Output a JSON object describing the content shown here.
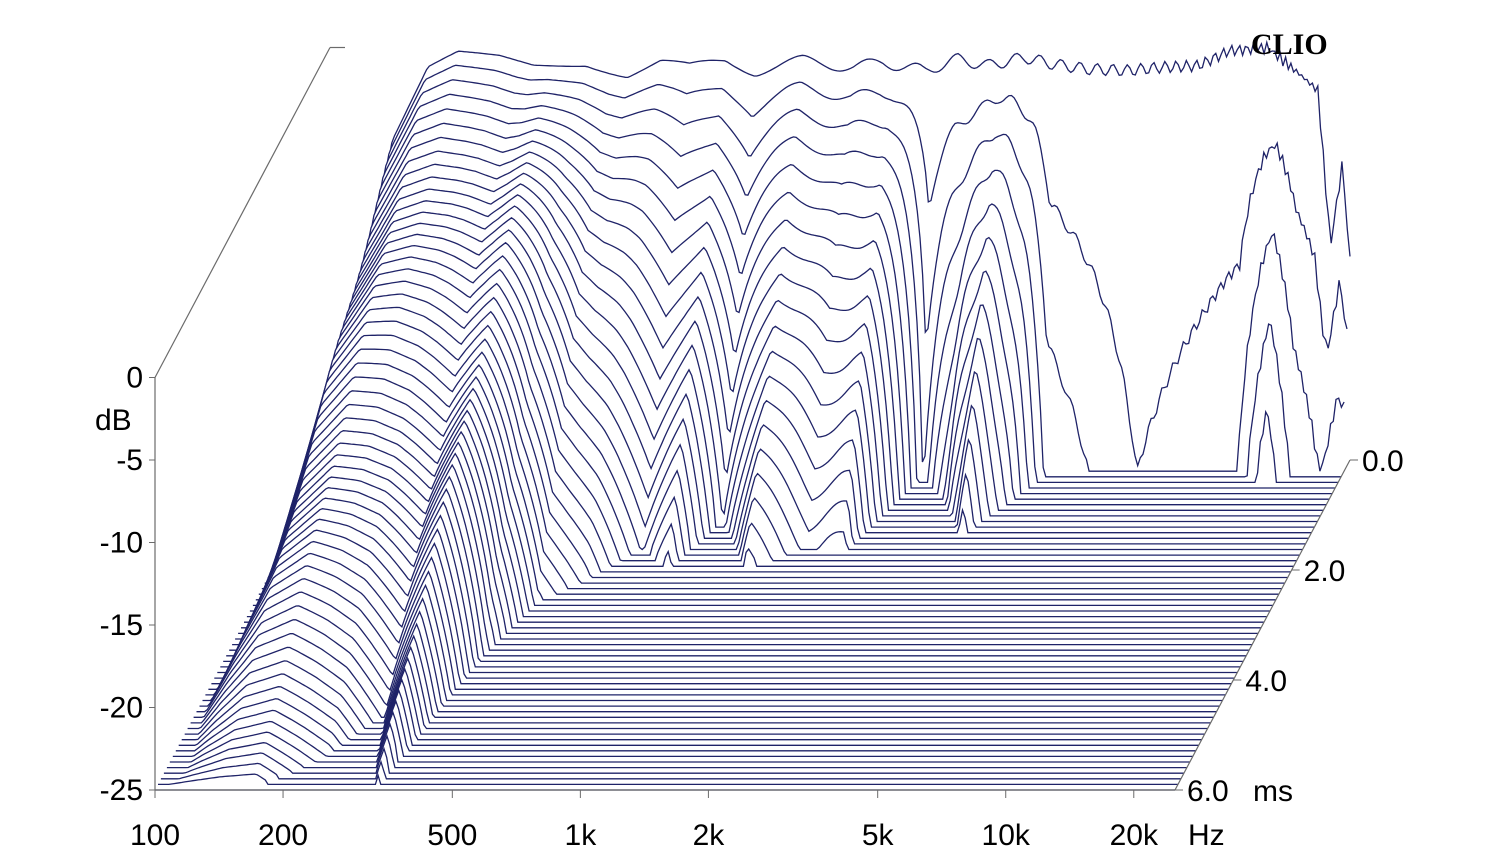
{
  "brand": "CLIO",
  "chart_data": {
    "type": "waterfall",
    "title": "",
    "x_axis": {
      "unit": "Hz",
      "scale": "log",
      "range": [
        100,
        25000
      ],
      "tick_labels": [
        "100",
        "200",
        "500",
        "1k",
        "2k",
        "5k",
        "10k",
        "20k"
      ],
      "tick_values": [
        100,
        200,
        500,
        1000,
        2000,
        5000,
        10000,
        20000
      ]
    },
    "z_axis": {
      "unit": "dB",
      "range": [
        -25,
        0
      ],
      "tick_labels": [
        "0",
        "-5",
        "-10",
        "-15",
        "-20",
        "-25"
      ],
      "tick_values": [
        0,
        -5,
        -10,
        -15,
        -20,
        -25
      ]
    },
    "time_axis": {
      "unit": "ms",
      "range": [
        0,
        6.0
      ],
      "tick_labels": [
        "0.0",
        "2.0",
        "4.0",
        "6.0"
      ],
      "tick_values": [
        0,
        2,
        4,
        6
      ]
    },
    "slice_count": 60,
    "decay_profile": [
      {
        "f": 100,
        "t_end": 6.0
      },
      {
        "f": 140,
        "t_end": 6.0
      },
      {
        "f": 170,
        "t_end": 6.0
      },
      {
        "f": 230,
        "t_end": 5.4
      },
      {
        "f": 280,
        "t_end": 4.7
      },
      {
        "f": 330,
        "t_end": 6.0
      },
      {
        "f": 400,
        "t_end": 3.6
      },
      {
        "f": 460,
        "t_end": 2.6
      },
      {
        "f": 560,
        "t_end": 2.2
      },
      {
        "f": 700,
        "t_end": 1.6
      },
      {
        "f": 850,
        "t_end": 2.0
      },
      {
        "f": 1000,
        "t_end": 1.1
      },
      {
        "f": 1300,
        "t_end": 2.0
      },
      {
        "f": 1700,
        "t_end": 1.6
      },
      {
        "f": 2100,
        "t_end": 1.7
      },
      {
        "f": 2600,
        "t_end": 0.3
      },
      {
        "f": 3200,
        "t_end": 0.8
      },
      {
        "f": 3800,
        "t_end": 1.4
      },
      {
        "f": 5000,
        "t_end": 0.3
      },
      {
        "f": 8000,
        "t_end": 0.1
      },
      {
        "f": 14000,
        "t_end": 0.2
      },
      {
        "f": 17000,
        "t_end": 0.5
      },
      {
        "f": 19000,
        "t_end": 0.3
      },
      {
        "f": 22000,
        "t_end": 0.2
      },
      {
        "f": 25000,
        "t_end": 0.3
      }
    ],
    "initial_response_db": [
      {
        "f": 100,
        "db": -30
      },
      {
        "f": 120,
        "db": -16
      },
      {
        "f": 140,
        "db": -6
      },
      {
        "f": 170,
        "db": -1.5
      },
      {
        "f": 200,
        "db": -0.5
      },
      {
        "f": 250,
        "db": -0.6
      },
      {
        "f": 300,
        "db": -1.0
      },
      {
        "f": 400,
        "db": -0.8
      },
      {
        "f": 500,
        "db": -1.6
      },
      {
        "f": 600,
        "db": -0.9
      },
      {
        "f": 700,
        "db": -1.3
      },
      {
        "f": 850,
        "db": -0.8
      },
      {
        "f": 1000,
        "db": -1.4
      },
      {
        "f": 1300,
        "db": -0.8
      },
      {
        "f": 1700,
        "db": -1.2
      },
      {
        "f": 2000,
        "db": -0.9
      },
      {
        "f": 2500,
        "db": -1.4
      },
      {
        "f": 3000,
        "db": -0.7
      },
      {
        "f": 3500,
        "db": -1.1
      },
      {
        "f": 4300,
        "db": -0.6
      },
      {
        "f": 5000,
        "db": -1.0
      },
      {
        "f": 6000,
        "db": -1.3
      },
      {
        "f": 7500,
        "db": -1.4
      },
      {
        "f": 9000,
        "db": -1.2
      },
      {
        "f": 11000,
        "db": -1.1
      },
      {
        "f": 13000,
        "db": -0.2
      },
      {
        "f": 16000,
        "db": 0
      },
      {
        "f": 19000,
        "db": -1.6
      },
      {
        "f": 21000,
        "db": -2.6
      },
      {
        "f": 22500,
        "db": -12
      },
      {
        "f": 24000,
        "db": -7
      },
      {
        "f": 25000,
        "db": -13
      }
    ],
    "line_color": "#1f2368",
    "background": "#ffffff",
    "grid": false,
    "legend": "none"
  }
}
